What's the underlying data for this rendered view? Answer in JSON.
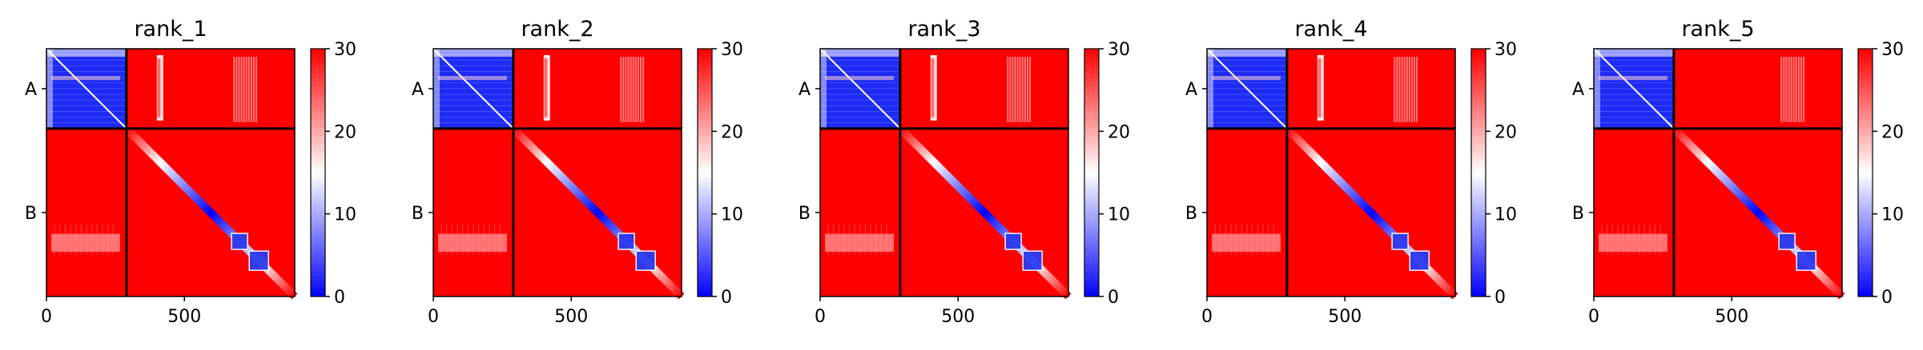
{
  "chart_data": {
    "type": "heatmap",
    "panels": [
      {
        "title": "rank_1",
        "a_vertical_band": true
      },
      {
        "title": "rank_2",
        "a_vertical_band": true
      },
      {
        "title": "rank_3",
        "a_vertical_band": true
      },
      {
        "title": "rank_4",
        "a_vertical_band": true
      },
      {
        "title": "rank_5",
        "a_vertical_band": false
      }
    ],
    "chains": [
      {
        "label": "A",
        "start": 0,
        "end": 290
      },
      {
        "label": "B",
        "start": 290,
        "end": 900
      }
    ],
    "x_axis": {
      "range": [
        0,
        900
      ],
      "ticks": [
        0,
        500
      ],
      "tick_labels": [
        "0",
        "500"
      ]
    },
    "colorbar": {
      "range": [
        0,
        30
      ],
      "ticks": [
        0,
        10,
        20,
        30
      ],
      "tick_labels": [
        "0",
        "10",
        "20",
        "30"
      ],
      "colormap": "bwr",
      "low_color": "#0000ff",
      "mid_color": "#ffffff",
      "high_color": "#ff0000"
    },
    "grid": false
  }
}
